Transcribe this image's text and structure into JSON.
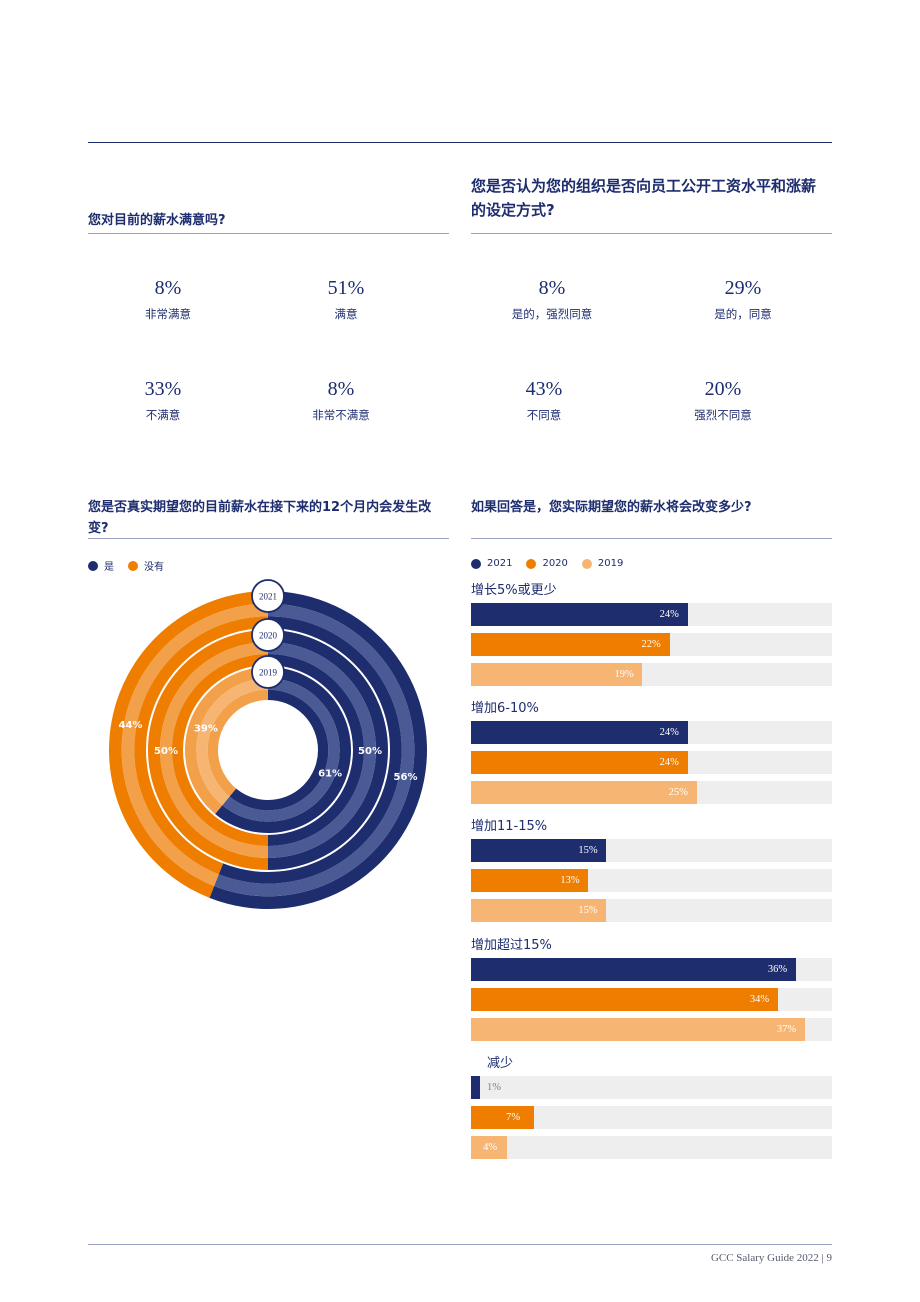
{
  "colors": {
    "navy": "#1e2d6e",
    "navy_light": "#4a5a95",
    "orange": "#ee7d00",
    "orange_mid": "#f3a04a",
    "peach": "#f7b574",
    "track": "#eeeeef"
  },
  "q1": {
    "title": "您对目前的薪水满意吗?",
    "stats": [
      {
        "pct": "8%",
        "label": "非常满意"
      },
      {
        "pct": "51%",
        "label": "满意"
      },
      {
        "pct": "33%",
        "label": "不满意"
      },
      {
        "pct": "8%",
        "label": "非常不满意"
      }
    ]
  },
  "q2": {
    "title": "您是否认为您的组织是否向员工公开工资水平和涨薪的设定方式?",
    "stats": [
      {
        "pct": "8%",
        "label": "是的，强烈同意"
      },
      {
        "pct": "29%",
        "label": "是的，同意"
      },
      {
        "pct": "43%",
        "label": "不同意"
      },
      {
        "pct": "20%",
        "label": "强烈不同意"
      }
    ]
  },
  "q3": {
    "title": "您是否真实期望您的目前薪水在接下来的12个月内会发生改变?",
    "legend": [
      {
        "label": "是",
        "color": "#1e2d6e"
      },
      {
        "label": "没有",
        "color": "#ee7d00"
      }
    ]
  },
  "q4": {
    "title": "如果回答是，您实际期望您的薪水将会改变多少?",
    "legend": [
      {
        "label": "2021",
        "color": "#1e2d6e"
      },
      {
        "label": "2020",
        "color": "#ee7d00"
      },
      {
        "label": "2019",
        "color": "#f7b574"
      }
    ]
  },
  "chart_data": [
    {
      "type": "donut",
      "title": "您是否真实期望您的目前薪水在接下来的12个月内会发生改变?",
      "categories": [
        "是",
        "没有"
      ],
      "series": [
        {
          "name": "2021",
          "values": [
            56,
            44
          ],
          "labels": [
            "56%",
            "44%"
          ]
        },
        {
          "name": "2020",
          "values": [
            50,
            50
          ],
          "labels": [
            "50%",
            "50%"
          ]
        },
        {
          "name": "2019",
          "values": [
            61,
            39
          ],
          "labels": [
            "61%",
            "39%"
          ]
        }
      ]
    },
    {
      "type": "bar",
      "orientation": "horizontal",
      "title": "如果回答是，您实际期望您的薪水将会改变多少?",
      "xlim": [
        0,
        100
      ],
      "categories": [
        "增长5%或更少",
        "增加6-10%",
        "增加11-15%",
        "增加超过15%",
        "减少"
      ],
      "series": [
        {
          "name": "2021",
          "values": [
            24,
            24,
            15,
            36,
            1
          ],
          "labels": [
            "24%",
            "24%",
            "15%",
            "36%",
            "1%"
          ]
        },
        {
          "name": "2020",
          "values": [
            22,
            24,
            13,
            34,
            7
          ],
          "labels": [
            "22%",
            "24%",
            "13%",
            "34%",
            "7%"
          ]
        },
        {
          "name": "2019",
          "values": [
            19,
            25,
            15,
            37,
            4
          ],
          "labels": [
            "19%",
            "25%",
            "15%",
            "37%",
            "4%"
          ]
        }
      ]
    }
  ],
  "footer": {
    "text": "GCC Salary Guide 2022 | 9"
  }
}
